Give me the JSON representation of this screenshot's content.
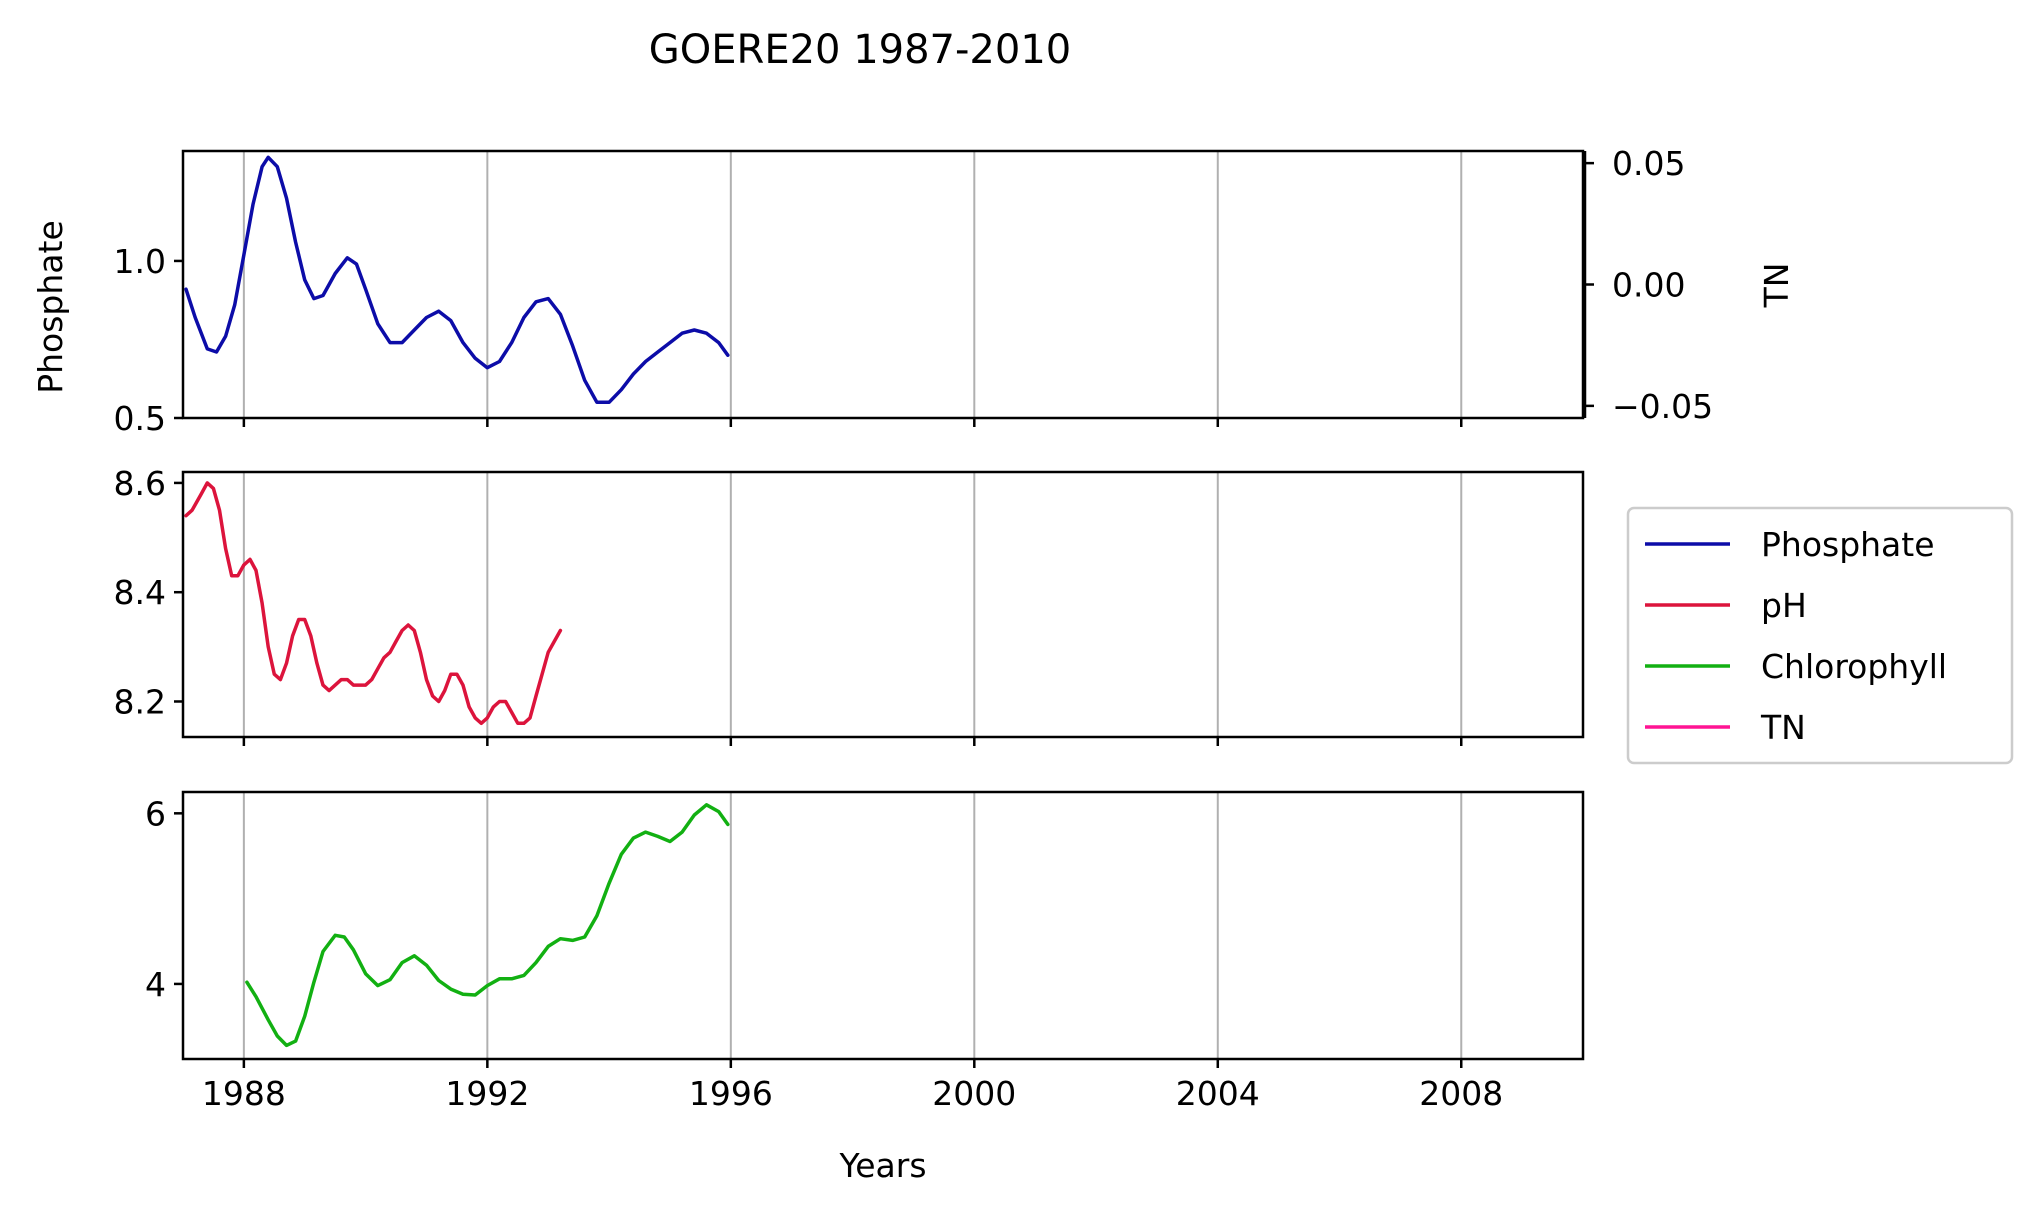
{
  "chart_data": {
    "type": "line",
    "title": "GOERE20 1987-2010",
    "xlabel": "Years",
    "xlim": [
      1987,
      2010
    ],
    "x_ticks": [
      1988,
      1992,
      1996,
      2000,
      2004,
      2008
    ],
    "grid": "vertical",
    "legend": {
      "placement": "right",
      "entries": [
        {
          "label": "Phosphate",
          "color": "#0c0ca8"
        },
        {
          "label": "pH",
          "color": "#dc143c"
        },
        {
          "label": "Chlorophyll",
          "color": "#12b012"
        },
        {
          "label": "TN",
          "color": "#ff1493"
        }
      ]
    },
    "panels": [
      {
        "ylabel": "Phosphate",
        "ylim": [
          0.5,
          1.35
        ],
        "y_ticks": [
          0.5,
          1.0
        ],
        "y_tick_labels": [
          "0.5",
          "1.0"
        ],
        "secondary_axis": {
          "ylabel": "TN",
          "ylim": [
            -0.055,
            0.055
          ],
          "y_ticks": [
            -0.05,
            0.0,
            0.05
          ],
          "y_tick_labels": [
            "−0.05",
            "0.00",
            "0.05"
          ]
        },
        "series": [
          {
            "name": "Phosphate",
            "color": "#0c0ca8",
            "x": [
              1987.05,
              1987.2,
              1987.4,
              1987.55,
              1987.7,
              1987.85,
              1988.0,
              1988.15,
              1988.3,
              1988.4,
              1988.55,
              1988.7,
              1988.85,
              1989.0,
              1989.15,
              1989.3,
              1989.5,
              1989.7,
              1989.85,
              1990.0,
              1990.2,
              1990.4,
              1990.6,
              1990.8,
              1991.0,
              1991.2,
              1991.4,
              1991.6,
              1991.8,
              1992.0,
              1992.2,
              1992.4,
              1992.6,
              1992.8,
              1993.0,
              1993.2,
              1993.4,
              1993.6,
              1993.8,
              1994.0,
              1994.2,
              1994.4,
              1994.6,
              1994.8,
              1995.0,
              1995.2,
              1995.4,
              1995.6,
              1995.8,
              1995.95
            ],
            "y": [
              0.91,
              0.82,
              0.72,
              0.71,
              0.76,
              0.86,
              1.02,
              1.18,
              1.3,
              1.33,
              1.3,
              1.2,
              1.06,
              0.94,
              0.88,
              0.89,
              0.96,
              1.01,
              0.99,
              0.91,
              0.8,
              0.74,
              0.74,
              0.78,
              0.82,
              0.84,
              0.81,
              0.74,
              0.69,
              0.66,
              0.68,
              0.74,
              0.82,
              0.87,
              0.88,
              0.83,
              0.73,
              0.62,
              0.55,
              0.55,
              0.59,
              0.64,
              0.68,
              0.71,
              0.74,
              0.77,
              0.78,
              0.77,
              0.74,
              0.7
            ]
          }
        ]
      },
      {
        "ylabel": "",
        "ylim": [
          8.135,
          8.62
        ],
        "y_ticks": [
          8.2,
          8.4,
          8.6
        ],
        "y_tick_labels": [
          "8.2",
          "8.4",
          "8.6"
        ],
        "series": [
          {
            "name": "pH",
            "color": "#dc143c",
            "x": [
              1987.05,
              1987.15,
              1987.3,
              1987.4,
              1987.5,
              1987.6,
              1987.7,
              1987.8,
              1987.9,
              1988.0,
              1988.1,
              1988.2,
              1988.3,
              1988.4,
              1988.5,
              1988.6,
              1988.7,
              1988.8,
              1988.9,
              1989.0,
              1989.1,
              1989.2,
              1989.3,
              1989.4,
              1989.5,
              1989.6,
              1989.7,
              1989.8,
              1989.9,
              1990.0,
              1990.1,
              1990.2,
              1990.3,
              1990.4,
              1990.5,
              1990.6,
              1990.7,
              1990.8,
              1990.9,
              1991.0,
              1991.1,
              1991.2,
              1991.3,
              1991.4,
              1991.5,
              1991.6,
              1991.7,
              1991.8,
              1991.9,
              1992.0,
              1992.1,
              1992.2,
              1992.3,
              1992.4,
              1992.5,
              1992.6,
              1992.7,
              1992.8,
              1992.9,
              1993.0,
              1993.1,
              1993.2
            ],
            "y": [
              8.54,
              8.55,
              8.58,
              8.6,
              8.59,
              8.55,
              8.48,
              8.43,
              8.43,
              8.45,
              8.46,
              8.44,
              8.38,
              8.3,
              8.25,
              8.24,
              8.27,
              8.32,
              8.35,
              8.35,
              8.32,
              8.27,
              8.23,
              8.22,
              8.23,
              8.24,
              8.24,
              8.23,
              8.23,
              8.23,
              8.24,
              8.26,
              8.28,
              8.29,
              8.31,
              8.33,
              8.34,
              8.33,
              8.29,
              8.24,
              8.21,
              8.2,
              8.22,
              8.25,
              8.25,
              8.23,
              8.19,
              8.17,
              8.16,
              8.17,
              8.19,
              8.2,
              8.2,
              8.18,
              8.16,
              8.16,
              8.17,
              8.21,
              8.25,
              8.29,
              8.31,
              8.33
            ]
          }
        ]
      },
      {
        "ylabel": "",
        "ylim": [
          3.12,
          6.25
        ],
        "y_ticks": [
          4,
          6
        ],
        "y_tick_labels": [
          "4",
          "6"
        ],
        "series": [
          {
            "name": "Chlorophyll",
            "color": "#12b012",
            "x": [
              1988.05,
              1988.2,
              1988.4,
              1988.55,
              1988.7,
              1988.85,
              1989.0,
              1989.15,
              1989.3,
              1989.5,
              1989.65,
              1989.8,
              1990.0,
              1990.2,
              1990.4,
              1990.6,
              1990.8,
              1991.0,
              1991.2,
              1991.4,
              1991.6,
              1991.8,
              1992.0,
              1992.2,
              1992.4,
              1992.6,
              1992.8,
              1993.0,
              1993.2,
              1993.4,
              1993.6,
              1993.8,
              1994.0,
              1994.2,
              1994.4,
              1994.6,
              1994.8,
              1995.0,
              1995.2,
              1995.4,
              1995.6,
              1995.8,
              1995.95
            ],
            "y": [
              4.02,
              3.85,
              3.58,
              3.39,
              3.28,
              3.33,
              3.62,
              4.02,
              4.38,
              4.57,
              4.55,
              4.4,
              4.12,
              3.98,
              4.05,
              4.25,
              4.33,
              4.22,
              4.04,
              3.94,
              3.88,
              3.87,
              3.98,
              4.06,
              4.06,
              4.1,
              4.25,
              4.44,
              4.53,
              4.51,
              4.55,
              4.8,
              5.18,
              5.52,
              5.71,
              5.78,
              5.73,
              5.67,
              5.78,
              5.98,
              6.1,
              6.02,
              5.87
            ]
          }
        ]
      }
    ]
  }
}
